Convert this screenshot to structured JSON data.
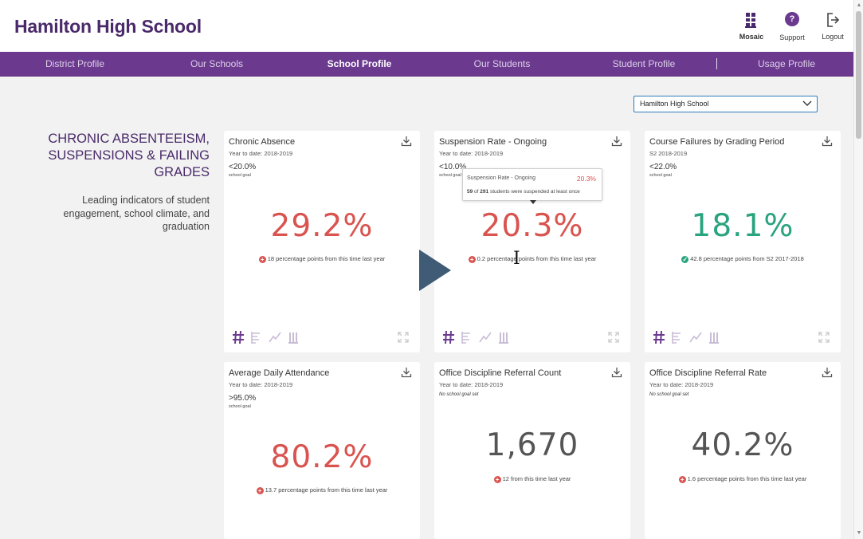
{
  "header": {
    "school_name": "Hamilton High School",
    "buttons": [
      {
        "label": "Mosaic",
        "icon": "mosaic-icon"
      },
      {
        "label": "Support",
        "icon": "help-icon"
      },
      {
        "label": "Logout",
        "icon": "logout-icon"
      }
    ]
  },
  "nav": {
    "items": [
      "District Profile",
      "Our Schools",
      "School Profile",
      "Our Students",
      "Student Profile",
      "Usage Profile"
    ],
    "active": "School Profile"
  },
  "school_select": {
    "value": "Hamilton High School"
  },
  "section": {
    "title": "CHRONIC ABSENTEEISM, SUSPENSIONS & FAILING GRADES",
    "description": "Leading indicators of student engagement, school climate, and graduation"
  },
  "cards": [
    {
      "title": "Chronic Absence",
      "subtitle": "Year to date: 2018-2019",
      "goal": "<20.0%",
      "goal_label": "school goal",
      "value": "29.2%",
      "value_color": "#d9534f",
      "delta": "18 percentage points from this time last year",
      "delta_dir": "up-bad"
    },
    {
      "title": "Suspension Rate - Ongoing",
      "subtitle": "Year to date: 2018-2019",
      "goal": "<10.0%",
      "goal_label": "school goal",
      "value": "20.3%",
      "value_color": "#d9534f",
      "delta": "0.2 percentage points from this time last year",
      "delta_dir": "up-bad"
    },
    {
      "title": "Course Failures by Grading Period",
      "subtitle": "S2 2018-2019",
      "goal": "<22.0%",
      "goal_label": "school goal",
      "value": "18.1%",
      "value_color": "#2aa37f",
      "delta": "42.8 percentage points from S2 2017-2018",
      "delta_dir": "down-good"
    },
    {
      "title": "Average Daily Attendance",
      "subtitle": "Year to date: 2018-2019",
      "goal": ">95.0%",
      "goal_label": "school goal",
      "value": "80.2%",
      "value_color": "#d9534f",
      "delta": "13.7 percentage points from this time last year",
      "delta_dir": "up-bad"
    },
    {
      "title": "Office Discipline Referral Count",
      "subtitle": "Year to date: 2018-2019",
      "goal_note": "No school goal set",
      "value": "1,670",
      "value_color": "#555555",
      "delta": "12 from this time last year",
      "delta_dir": "up-bad"
    },
    {
      "title": "Office Discipline Referral Rate",
      "subtitle": "Year to date: 2018-2019",
      "goal_note": "No school goal set",
      "value": "40.2%",
      "value_color": "#555555",
      "delta": "1.6 percentage points from this time last year",
      "delta_dir": "up-bad"
    }
  ],
  "tooltip": {
    "title": "Suspension Rate - Ongoing",
    "value": "20.3%",
    "count": "59",
    "connector": "of",
    "total": "291",
    "text": "students were suspended at least once"
  },
  "colors": {
    "brand_purple": "#6b3a8f",
    "bad_red": "#d9534f",
    "good_green": "#2aa37f",
    "play_button": "#3f5b75"
  }
}
